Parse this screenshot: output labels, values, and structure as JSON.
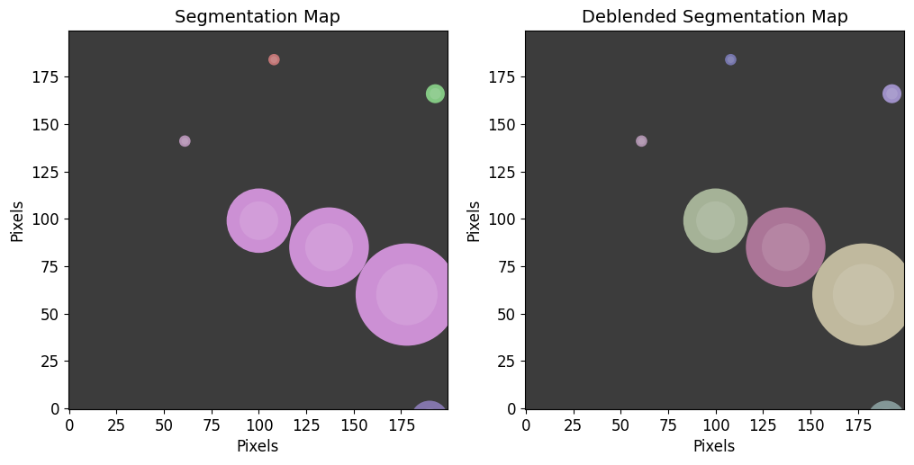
{
  "chart_data": [
    {
      "type": "image",
      "title": "Segmentation Map",
      "x_label": "Pixels",
      "y_label": "Pixels",
      "xlim": [
        -0.5,
        199.5
      ],
      "ylim": [
        -0.5,
        199.5
      ],
      "xticks": [
        0,
        25,
        50,
        75,
        100,
        125,
        150,
        175
      ],
      "yticks": [
        0,
        25,
        50,
        75,
        100,
        125,
        150,
        175
      ],
      "segments": [
        {
          "x": 108,
          "y": 184,
          "radius": 3,
          "color": "#d98080"
        },
        {
          "x": 193,
          "y": 166,
          "radius": 5,
          "color": "#90e090"
        },
        {
          "x": 61,
          "y": 141,
          "radius": 3,
          "color": "#c8a0c8"
        },
        {
          "x": 100,
          "y": 99,
          "radius": 17,
          "color": "#e6a0f0"
        },
        {
          "x": 137,
          "y": 85,
          "radius": 21,
          "color": "#e6a0f0"
        },
        {
          "x": 178,
          "y": 60,
          "radius": 27,
          "color": "#e6a0f0"
        },
        {
          "x": 190,
          "y": -6,
          "radius": 10,
          "color": "#9080c0"
        }
      ]
    },
    {
      "type": "image",
      "title": "Deblended Segmentation Map",
      "x_label": "Pixels",
      "y_label": "Pixels",
      "xlim": [
        -0.5,
        199.5
      ],
      "ylim": [
        -0.5,
        199.5
      ],
      "xticks": [
        0,
        25,
        50,
        75,
        100,
        125,
        150,
        175
      ],
      "yticks": [
        0,
        25,
        50,
        75,
        100,
        125,
        150,
        175
      ],
      "segments": [
        {
          "x": 108,
          "y": 184,
          "radius": 3,
          "color": "#8080c0"
        },
        {
          "x": 193,
          "y": 166,
          "radius": 5,
          "color": "#b0a0e0"
        },
        {
          "x": 61,
          "y": 141,
          "radius": 3,
          "color": "#c0a0c0"
        },
        {
          "x": 100,
          "y": 99,
          "radius": 17,
          "color": "#b8c8a8"
        },
        {
          "x": 137,
          "y": 85,
          "radius": 21,
          "color": "#c080a8"
        },
        {
          "x": 178,
          "y": 60,
          "radius": 27,
          "color": "#d8d0b0"
        },
        {
          "x": 190,
          "y": -6,
          "radius": 10,
          "color": "#90a8a8"
        }
      ]
    }
  ]
}
